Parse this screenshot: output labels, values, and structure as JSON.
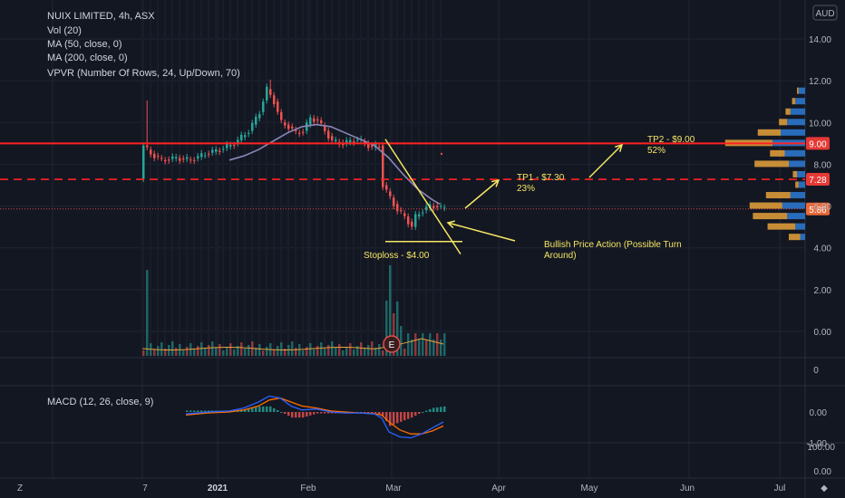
{
  "header": {
    "title": "NUIX LIMITED, 4h, ASX",
    "indicators": [
      "Vol (20)",
      "MA (50, close, 0)",
      "MA (200, close, 0)",
      "VPVR (Number Of Rows, 24, Up/Down, 70)"
    ],
    "currency": "AUD"
  },
  "macd_label": "MACD (12, 26, close, 9)",
  "colors": {
    "background": "#131722",
    "up": "#26a69a",
    "down": "#ef5350",
    "level_line": "#ff2222",
    "ma": "#8c86b8",
    "annotation": "#f5e663",
    "macd": "#2962ff",
    "signal": "#ff6d00",
    "vpvr_up": "#2e7bd6",
    "vpvr_down": "#e8a23a"
  },
  "chart_data": [
    {
      "type": "candlestick",
      "y_axis": {
        "ticks": [
          "14.00",
          "12.00",
          "10.00",
          "8.00",
          "6.00",
          "4.00",
          "2.00",
          "0.00"
        ],
        "ylim": [
          -1.0,
          15.0
        ]
      },
      "x_axis": {
        "ticks": [
          "7",
          "2021",
          "Feb",
          "Mar",
          "Apr",
          "May",
          "Jun",
          "Jul"
        ],
        "bold": [
          "2021"
        ]
      },
      "price_path": [
        [
          0,
          7.3
        ],
        [
          1,
          8.9
        ],
        [
          3,
          8.5
        ],
        [
          6,
          8.2
        ],
        [
          10,
          8.3
        ],
        [
          14,
          8.2
        ],
        [
          18,
          8.5
        ],
        [
          22,
          8.7
        ],
        [
          26,
          9.0
        ],
        [
          30,
          9.6
        ],
        [
          33,
          10.5
        ],
        [
          35,
          11.6
        ],
        [
          37,
          11.0
        ],
        [
          39,
          10.0
        ],
        [
          41,
          9.8
        ],
        [
          43,
          9.5
        ],
        [
          45,
          9.6
        ],
        [
          47,
          10.2
        ],
        [
          49,
          10.1
        ],
        [
          51,
          9.6
        ],
        [
          53,
          9.1
        ],
        [
          56,
          9.0
        ],
        [
          60,
          9.2
        ],
        [
          64,
          8.8
        ],
        [
          66,
          8.9
        ],
        [
          67,
          7.0
        ],
        [
          69,
          6.4
        ],
        [
          71,
          5.8
        ],
        [
          73,
          5.5
        ],
        [
          75,
          5.0
        ],
        [
          76,
          5.5
        ],
        [
          78,
          5.8
        ],
        [
          80,
          6.0
        ],
        [
          82,
          6.0
        ],
        [
          83,
          5.9
        ]
      ],
      "ma_path": [
        [
          24,
          8.2
        ],
        [
          28,
          8.4
        ],
        [
          32,
          8.7
        ],
        [
          36,
          9.1
        ],
        [
          40,
          9.5
        ],
        [
          44,
          9.8
        ],
        [
          48,
          9.9
        ],
        [
          52,
          9.8
        ],
        [
          56,
          9.5
        ],
        [
          60,
          9.2
        ],
        [
          64,
          8.9
        ],
        [
          68,
          8.3
        ],
        [
          72,
          7.5
        ],
        [
          76,
          6.8
        ],
        [
          80,
          6.3
        ],
        [
          82,
          6.1
        ]
      ],
      "levels": [
        {
          "price": 9.0,
          "label": "9.00",
          "style": "solid"
        },
        {
          "price": 7.28,
          "label": "7.28",
          "style": "dashed"
        },
        {
          "price": 5.86,
          "label": "5.86",
          "style": "dotted"
        }
      ],
      "annotations": {
        "tp2": "TP2 - $9.00",
        "tp2_pct": "52%",
        "tp1": "TP1 - $7.30",
        "tp1_pct": "23%",
        "stoploss": "Stoploss - $4.00",
        "bullish": "Bullish Price Action (Possible Turn",
        "bullish2": "Around)"
      },
      "volume_profile": [
        {
          "price": 11.5,
          "up": 8,
          "down": 2
        },
        {
          "price": 11.0,
          "up": 12,
          "down": 4
        },
        {
          "price": 10.5,
          "up": 18,
          "down": 6
        },
        {
          "price": 10.0,
          "up": 22,
          "down": 10
        },
        {
          "price": 9.5,
          "up": 30,
          "down": 28
        },
        {
          "price": 9.0,
          "up": 40,
          "down": 58
        },
        {
          "price": 8.5,
          "up": 25,
          "down": 18
        },
        {
          "price": 8.0,
          "up": 20,
          "down": 42
        },
        {
          "price": 7.5,
          "up": 10,
          "down": 5
        },
        {
          "price": 7.0,
          "up": 8,
          "down": 4
        },
        {
          "price": 6.5,
          "up": 18,
          "down": 30
        },
        {
          "price": 6.0,
          "up": 28,
          "down": 40
        },
        {
          "price": 5.5,
          "up": 22,
          "down": 42
        },
        {
          "price": 5.0,
          "up": 12,
          "down": 34
        },
        {
          "price": 4.5,
          "up": 6,
          "down": 14
        }
      ],
      "event_marker": "E"
    },
    {
      "type": "bar",
      "name": "Vol (20)",
      "values_pattern": "volume",
      "y_axis": {
        "ticks": [
          "0"
        ]
      }
    },
    {
      "type": "histogram",
      "name": "MACD (12, 26, close, 9)",
      "y_axis": {
        "ticks": [
          "0.00",
          "-1.00"
        ]
      },
      "macd_path": [
        [
          12,
          -0.1
        ],
        [
          18,
          0.0
        ],
        [
          24,
          0.05
        ],
        [
          28,
          0.2
        ],
        [
          32,
          0.5
        ],
        [
          35,
          0.8
        ],
        [
          38,
          0.7
        ],
        [
          41,
          0.3
        ],
        [
          44,
          0.1
        ],
        [
          48,
          0.15
        ],
        [
          52,
          0.0
        ],
        [
          56,
          -0.05
        ],
        [
          60,
          -0.05
        ],
        [
          64,
          -0.1
        ],
        [
          66,
          -0.3
        ],
        [
          68,
          -1.0
        ],
        [
          71,
          -1.25
        ],
        [
          74,
          -1.3
        ],
        [
          77,
          -1.1
        ],
        [
          80,
          -0.8
        ],
        [
          83,
          -0.5
        ]
      ],
      "signal_path": [
        [
          12,
          -0.15
        ],
        [
          18,
          -0.05
        ],
        [
          24,
          0.0
        ],
        [
          28,
          0.1
        ],
        [
          32,
          0.3
        ],
        [
          35,
          0.6
        ],
        [
          38,
          0.7
        ],
        [
          41,
          0.5
        ],
        [
          44,
          0.3
        ],
        [
          48,
          0.2
        ],
        [
          52,
          0.05
        ],
        [
          56,
          0.0
        ],
        [
          60,
          -0.05
        ],
        [
          64,
          -0.08
        ],
        [
          66,
          -0.15
        ],
        [
          68,
          -0.5
        ],
        [
          71,
          -0.9
        ],
        [
          74,
          -1.1
        ],
        [
          77,
          -1.1
        ],
        [
          80,
          -0.95
        ],
        [
          83,
          -0.7
        ]
      ]
    },
    {
      "type": "line",
      "name": "RSI",
      "y_axis": {
        "ticks": [
          "100.00",
          "0.00"
        ]
      }
    }
  ]
}
